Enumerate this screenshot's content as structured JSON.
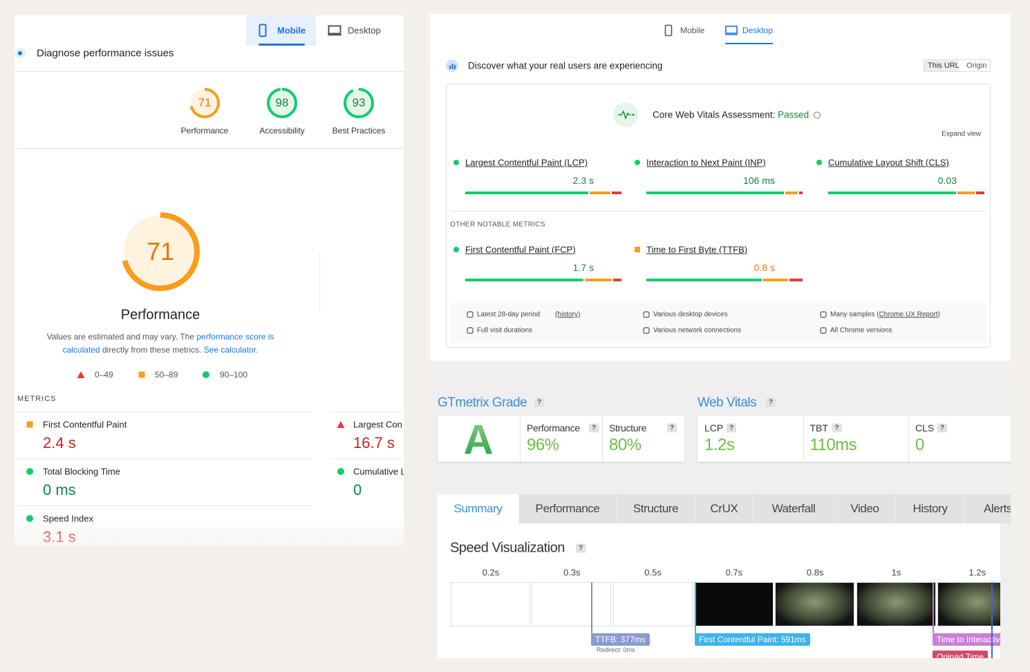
{
  "pagespeed": {
    "tabs": [
      "Mobile",
      "Desktop"
    ],
    "title": "Diagnose performance issues",
    "scores": [
      {
        "value": 71,
        "label": "Performance"
      },
      {
        "value": 98,
        "label": "Accessibility"
      },
      {
        "value": 93,
        "label": "Best Practices"
      }
    ],
    "main_score": {
      "value": 71,
      "label": "Performance"
    },
    "note": {
      "text1": "Values are estimated and may vary. The ",
      "link1": "performance score is calculated",
      "text2": " directly from these metrics. ",
      "link2": "See calculator."
    },
    "legend": [
      "0–49",
      "50–89",
      "90–100"
    ],
    "metrics_heading": "METRICS",
    "metrics": [
      {
        "name": "First Contentful Paint",
        "value": "2.4 s",
        "rating": "average",
        "color": "#c5221f"
      },
      {
        "name": "Largest Con",
        "value": "16.7 s",
        "rating": "poor",
        "color": "#c5221f"
      },
      {
        "name": "Total Blocking Time",
        "value": "0 ms",
        "rating": "good",
        "color": "#0d8a3a"
      },
      {
        "name": "Cumulative L",
        "value": "0",
        "rating": "good",
        "color": "#0d8a3a"
      },
      {
        "name": "Speed Index",
        "value": "3.1 s",
        "rating": "good",
        "color": "#c5221f"
      }
    ]
  },
  "crux": {
    "tabs": [
      "Mobile",
      "Desktop"
    ],
    "heading": "Discover what your real users are experiencing",
    "toggle": [
      "This URL",
      "Origin"
    ],
    "assessment": "Core Web Vitals Assessment: ",
    "status": "Passed",
    "expand": "Expand view",
    "core": [
      {
        "name": "Largest Contentful Paint (LCP)",
        "value": "2.3 s",
        "rating": "good",
        "distribution": [
          79,
          14,
          7
        ]
      },
      {
        "name": "Interaction to Next Paint (INP)",
        "value": "106 ms",
        "rating": "good",
        "distribution": [
          88,
          9,
          3
        ]
      },
      {
        "name": "Cumulative Layout Shift (CLS)",
        "value": "0.03",
        "rating": "good",
        "distribution": [
          82,
          12,
          6
        ]
      }
    ],
    "other_heading": "OTHER NOTABLE METRICS",
    "other": [
      {
        "name": "First Contentful Paint (FCP)",
        "value": "1.7 s",
        "rating": "good",
        "distribution": [
          76,
          18,
          6
        ]
      },
      {
        "name": "Time to First Byte (TTFB)",
        "value": "0.8 s",
        "rating": "average",
        "distribution": [
          74,
          17,
          9
        ]
      }
    ],
    "footer": [
      {
        "text": "Latest 28-day period",
        "link": "(history)"
      },
      {
        "text": "Various desktop devices"
      },
      {
        "text": "Many samples (",
        "link": "Chrome UX Report",
        "after": ")"
      },
      {
        "text": "Full visit durations"
      },
      {
        "text": "Various network connections"
      },
      {
        "text": "All Chrome versions"
      }
    ]
  },
  "gtmetrix": {
    "grade_title": "GTmetrix Grade",
    "vitals_title": "Web Vitals",
    "help": "?",
    "grade": "A",
    "grade_metrics": [
      {
        "name": "Performance",
        "value": "96%"
      },
      {
        "name": "Structure",
        "value": "80%"
      }
    ],
    "vitals": [
      {
        "name": "LCP",
        "value": "1.2s"
      },
      {
        "name": "TBT",
        "value": "110ms"
      },
      {
        "name": "CLS",
        "value": "0"
      }
    ],
    "tabs": [
      "Summary",
      "Performance",
      "Structure",
      "CrUX",
      "Waterfall",
      "Video",
      "History",
      "Alerts"
    ],
    "speed_title": "Speed Visualization",
    "frame_times": [
      "0.2s",
      "0.3s",
      "0.5s",
      "0.7s",
      "0.8s",
      "1s",
      "1.2s"
    ],
    "markers": [
      {
        "label": "TTFB: 377ms",
        "sub": "Redirect: 0ms"
      },
      {
        "label": "First Contentful Paint: 591ms"
      },
      {
        "label": "Time to Interactiv"
      },
      {
        "label": "Onload Time"
      }
    ]
  }
}
